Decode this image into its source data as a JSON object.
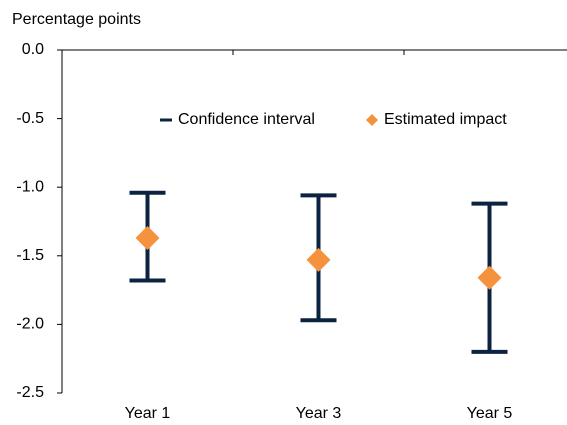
{
  "chart_data": {
    "type": "errorbar",
    "y_label": "Percentage points",
    "categories": [
      "Year 1",
      "Year 3",
      "Year 5"
    ],
    "series": [
      {
        "name": "Confidence interval",
        "color": "#0b2341",
        "lower": [
          -1.68,
          -1.97,
          -2.2
        ],
        "upper": [
          -1.04,
          -1.06,
          -1.12
        ]
      },
      {
        "name": "Estimated impact",
        "color": "#f5923e",
        "values": [
          -1.37,
          -1.53,
          -1.66
        ]
      }
    ],
    "ylim": [
      -2.5,
      0
    ],
    "yticks": [
      {
        "value": 0,
        "label": "0.0"
      },
      -0.5,
      {
        "value": -1,
        "label": "-1.0"
      },
      -1.5,
      {
        "value": -2,
        "label": "-2.0"
      },
      -2.5
    ]
  }
}
